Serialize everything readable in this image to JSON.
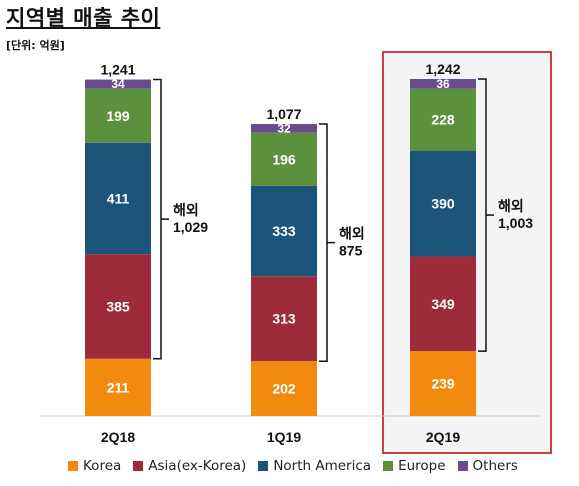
{
  "header": {
    "title": "지역별 매출 추이",
    "unit": "[단위: 억원]"
  },
  "colors": {
    "Korea": "#f28a10",
    "Asia(ex-Korea)": "#9e2b3a",
    "North America": "#1d5479",
    "Europe": "#5b913d",
    "Others": "#6a4c8c",
    "highlight_border": "#c9413e",
    "highlight_fill": "#f4f4f4",
    "bracket": "#111111"
  },
  "chart_data": {
    "type": "bar",
    "stacked": true,
    "categories": [
      "2Q18",
      "1Q19",
      "2Q19"
    ],
    "series": [
      {
        "name": "Korea",
        "values": [
          211,
          202,
          239
        ]
      },
      {
        "name": "Asia(ex-Korea)",
        "values": [
          385,
          313,
          349
        ]
      },
      {
        "name": "North America",
        "values": [
          411,
          333,
          390
        ]
      },
      {
        "name": "Europe",
        "values": [
          199,
          196,
          228
        ]
      },
      {
        "name": "Others",
        "values": [
          34,
          32,
          36
        ]
      }
    ],
    "totals": [
      "1,241",
      "1,077",
      "1,242"
    ],
    "overseas": [
      {
        "label": "해외",
        "value": "1,029"
      },
      {
        "label": "해외",
        "value": "875"
      },
      {
        "label": "해외",
        "value": "1,003"
      }
    ],
    "highlighted_category": "2Q19",
    "legend_position": "bottom",
    "grid": false,
    "ylim": [
      0,
      1300
    ]
  }
}
